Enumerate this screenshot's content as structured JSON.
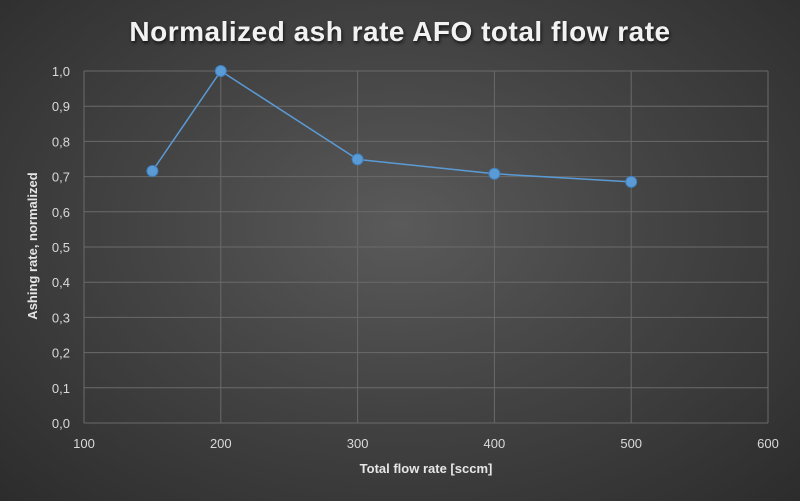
{
  "chart_data": {
    "type": "scatter",
    "title": "Normalized ash rate AFO total flow rate",
    "xlabel": "Total flow rate [sccm]",
    "ylabel": "Ashing rate, normalized",
    "x": [
      150,
      200,
      300,
      400,
      500
    ],
    "series": [
      {
        "values": [
          0.716,
          1.0,
          0.749,
          0.708,
          0.685
        ]
      }
    ],
    "xlim": [
      100,
      600
    ],
    "ylim": [
      0.0,
      1.0
    ],
    "xticks": [
      100,
      200,
      300,
      400,
      500,
      600
    ],
    "yticks": [
      "0,0",
      "0,1",
      "0,2",
      "0,3",
      "0,4",
      "0,5",
      "0,6",
      "0,7",
      "0,8",
      "0,9",
      "1,0"
    ],
    "grid": true,
    "lines_connected": true,
    "colors": {
      "series": "#5b9bd5",
      "grid": "#6a6a6a",
      "text": "#d9d9d9"
    }
  }
}
